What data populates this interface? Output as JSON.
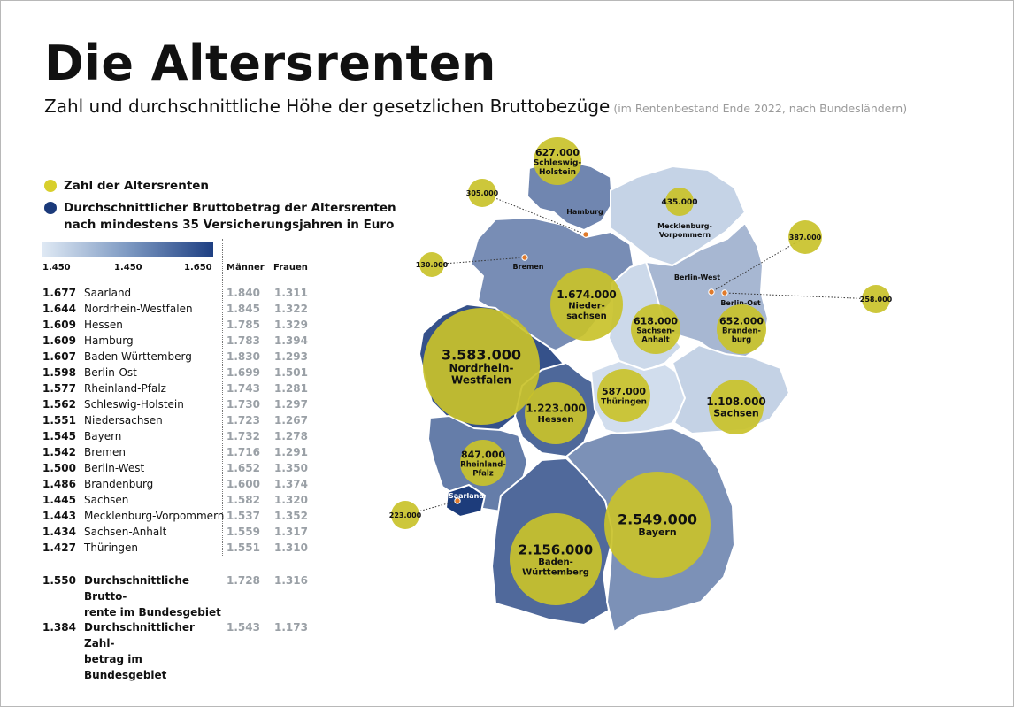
{
  "title": "Die Altersrenten",
  "subtitle": "Zahl und durchschnittliche Höhe der gesetzlichen Bruttobezüge",
  "subtitle_note": "(im Rentenbestand Ende 2022, nach Bundesländern)",
  "legend": {
    "count_label": "Zahl der Altersrenten",
    "amount_label_line1": "Durchschnittlicher Bruttobetrag der Altersrenten",
    "amount_label_line2": "nach mindestens 35 Versicherungsjahren in Euro",
    "scale_ticks": [
      "1.450",
      "1.450",
      "1.650"
    ]
  },
  "colors": {
    "bubble": "#c9c22a",
    "bubble_legend": "#d8cf2c",
    "accent_dark": "#1b3a7a",
    "marker": "#e07a2b"
  },
  "table": {
    "col_men": "Männer",
    "col_women": "Frauen",
    "rows": [
      {
        "value": "1.677",
        "name": "Saarland",
        "men": "1.840",
        "women": "1.311"
      },
      {
        "value": "1.644",
        "name": "Nordrhein-Westfalen",
        "men": "1.845",
        "women": "1.322"
      },
      {
        "value": "1.609",
        "name": "Hessen",
        "men": "1.785",
        "women": "1.329"
      },
      {
        "value": "1.609",
        "name": "Hamburg",
        "men": "1.783",
        "women": "1.394"
      },
      {
        "value": "1.607",
        "name": "Baden-Württemberg",
        "men": "1.830",
        "women": "1.293"
      },
      {
        "value": "1.598",
        "name": "Berlin-Ost",
        "men": "1.699",
        "women": "1.501"
      },
      {
        "value": "1.577",
        "name": "Rheinland-Pfalz",
        "men": "1.743",
        "women": "1.281"
      },
      {
        "value": "1.562",
        "name": "Schleswig-Holstein",
        "men": "1.730",
        "women": "1.297"
      },
      {
        "value": "1.551",
        "name": "Niedersachsen",
        "men": "1.723",
        "women": "1.267"
      },
      {
        "value": "1.545",
        "name": "Bayern",
        "men": "1.732",
        "women": "1.278"
      },
      {
        "value": "1.542",
        "name": "Bremen",
        "men": "1.716",
        "women": "1.291"
      },
      {
        "value": "1.500",
        "name": "Berlin-West",
        "men": "1.652",
        "women": "1.350"
      },
      {
        "value": "1.486",
        "name": "Brandenburg",
        "men": "1.600",
        "women": "1.374"
      },
      {
        "value": "1.445",
        "name": "Sachsen",
        "men": "1.582",
        "women": "1.320"
      },
      {
        "value": "1.443",
        "name": "Mecklenburg-Vorpommern",
        "men": "1.537",
        "women": "1.352"
      },
      {
        "value": "1.434",
        "name": "Sachsen-Anhalt",
        "men": "1.559",
        "women": "1.317"
      },
      {
        "value": "1.427",
        "name": "Thüringen",
        "men": "1.551",
        "women": "1.310"
      }
    ],
    "summary": [
      {
        "value": "1.550",
        "name_line1": "Durchschnittliche Brutto-",
        "name_line2": "rente im Bundesgebiet",
        "men": "1.728",
        "women": "1.316"
      },
      {
        "value": "1.384",
        "name_line1": "Durchschnittlicher Zahl-",
        "name_line2": "betrag im Bundesgebiet",
        "men": "1.543",
        "women": "1.173"
      }
    ]
  },
  "chart_data": {
    "type": "bubble-map",
    "regions": [
      {
        "name": "Schleswig-Holstein",
        "count": "627.000",
        "label_lines": [
          "Schleswig-",
          "Holstein"
        ],
        "avg": 1562
      },
      {
        "name": "Hamburg",
        "count": "305.000",
        "label_lines": [
          "Hamburg"
        ],
        "avg": 1609
      },
      {
        "name": "Mecklenburg-Vorpommern",
        "count": "435.000",
        "label_lines": [
          "Mecklenburg-",
          "Vorpommern"
        ],
        "avg": 1443
      },
      {
        "name": "Bremen",
        "count": "130.000",
        "label_lines": [
          "Bremen"
        ],
        "avg": 1542
      },
      {
        "name": "Berlin-West",
        "count": "387.000",
        "label_lines": [
          "Berlin-West"
        ],
        "avg": 1500
      },
      {
        "name": "Berlin-Ost",
        "count": "258.000",
        "label_lines": [
          "Berlin-Ost"
        ],
        "avg": 1598
      },
      {
        "name": "Niedersachsen",
        "count": "1.674.000",
        "label_lines": [
          "Nieder-",
          "sachsen"
        ],
        "avg": 1551
      },
      {
        "name": "Sachsen-Anhalt",
        "count": "618.000",
        "label_lines": [
          "Sachsen-",
          "Anhalt"
        ],
        "avg": 1434
      },
      {
        "name": "Brandenburg",
        "count": "652.000",
        "label_lines": [
          "Branden-",
          "burg"
        ],
        "avg": 1486
      },
      {
        "name": "Nordrhein-Westfalen",
        "count": "3.583.000",
        "label_lines": [
          "Nordrhein-",
          "Westfalen"
        ],
        "avg": 1644
      },
      {
        "name": "Hessen",
        "count": "1.223.000",
        "label_lines": [
          "Hessen"
        ],
        "avg": 1609
      },
      {
        "name": "Thüringen",
        "count": "587.000",
        "label_lines": [
          "Thüringen"
        ],
        "avg": 1427
      },
      {
        "name": "Sachsen",
        "count": "1.108.000",
        "label_lines": [
          "Sachsen"
        ],
        "avg": 1445
      },
      {
        "name": "Rheinland-Pfalz",
        "count": "847.000",
        "label_lines": [
          "Rheinland-",
          "Pfalz"
        ],
        "avg": 1577
      },
      {
        "name": "Saarland",
        "count": "223.000",
        "label_lines": [
          "Saarland"
        ],
        "avg": 1677
      },
      {
        "name": "Bayern",
        "count": "2.549.000",
        "label_lines": [
          "Bayern"
        ],
        "avg": 1545
      },
      {
        "name": "Baden-Württemberg",
        "count": "2.156.000",
        "label_lines": [
          "Baden-",
          "Württemberg"
        ],
        "avg": 1607
      }
    ]
  }
}
